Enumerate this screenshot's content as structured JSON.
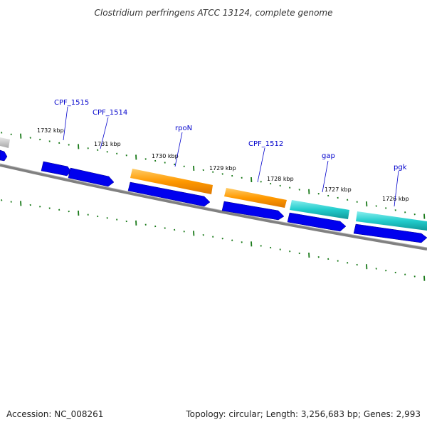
{
  "title": "Clostridium perfringens ATCC 13124, complete genome",
  "footer": {
    "accession": "Accession: NC_008261",
    "summary": "Topology: circular; Length: 3,256,683 bp; Genes: 2,993"
  },
  "colors": {
    "backbone": "#808080",
    "forward_cds": "#0000ee",
    "rrna_like": "#ff9900",
    "teal_gene": "#22cccc",
    "tick": "#1a7a1a",
    "label": "#0000cc"
  },
  "kbp_ticks": [
    "1732 kbp",
    "1731 kbp",
    "1730 kbp",
    "1729 kbp",
    "1728 kbp",
    "1727 kbp",
    "1726 kbp"
  ],
  "gene_labels": [
    "CPF_1515",
    "CPF_1514",
    "rpoN",
    "CPF_1512",
    "gap",
    "pgk"
  ]
}
